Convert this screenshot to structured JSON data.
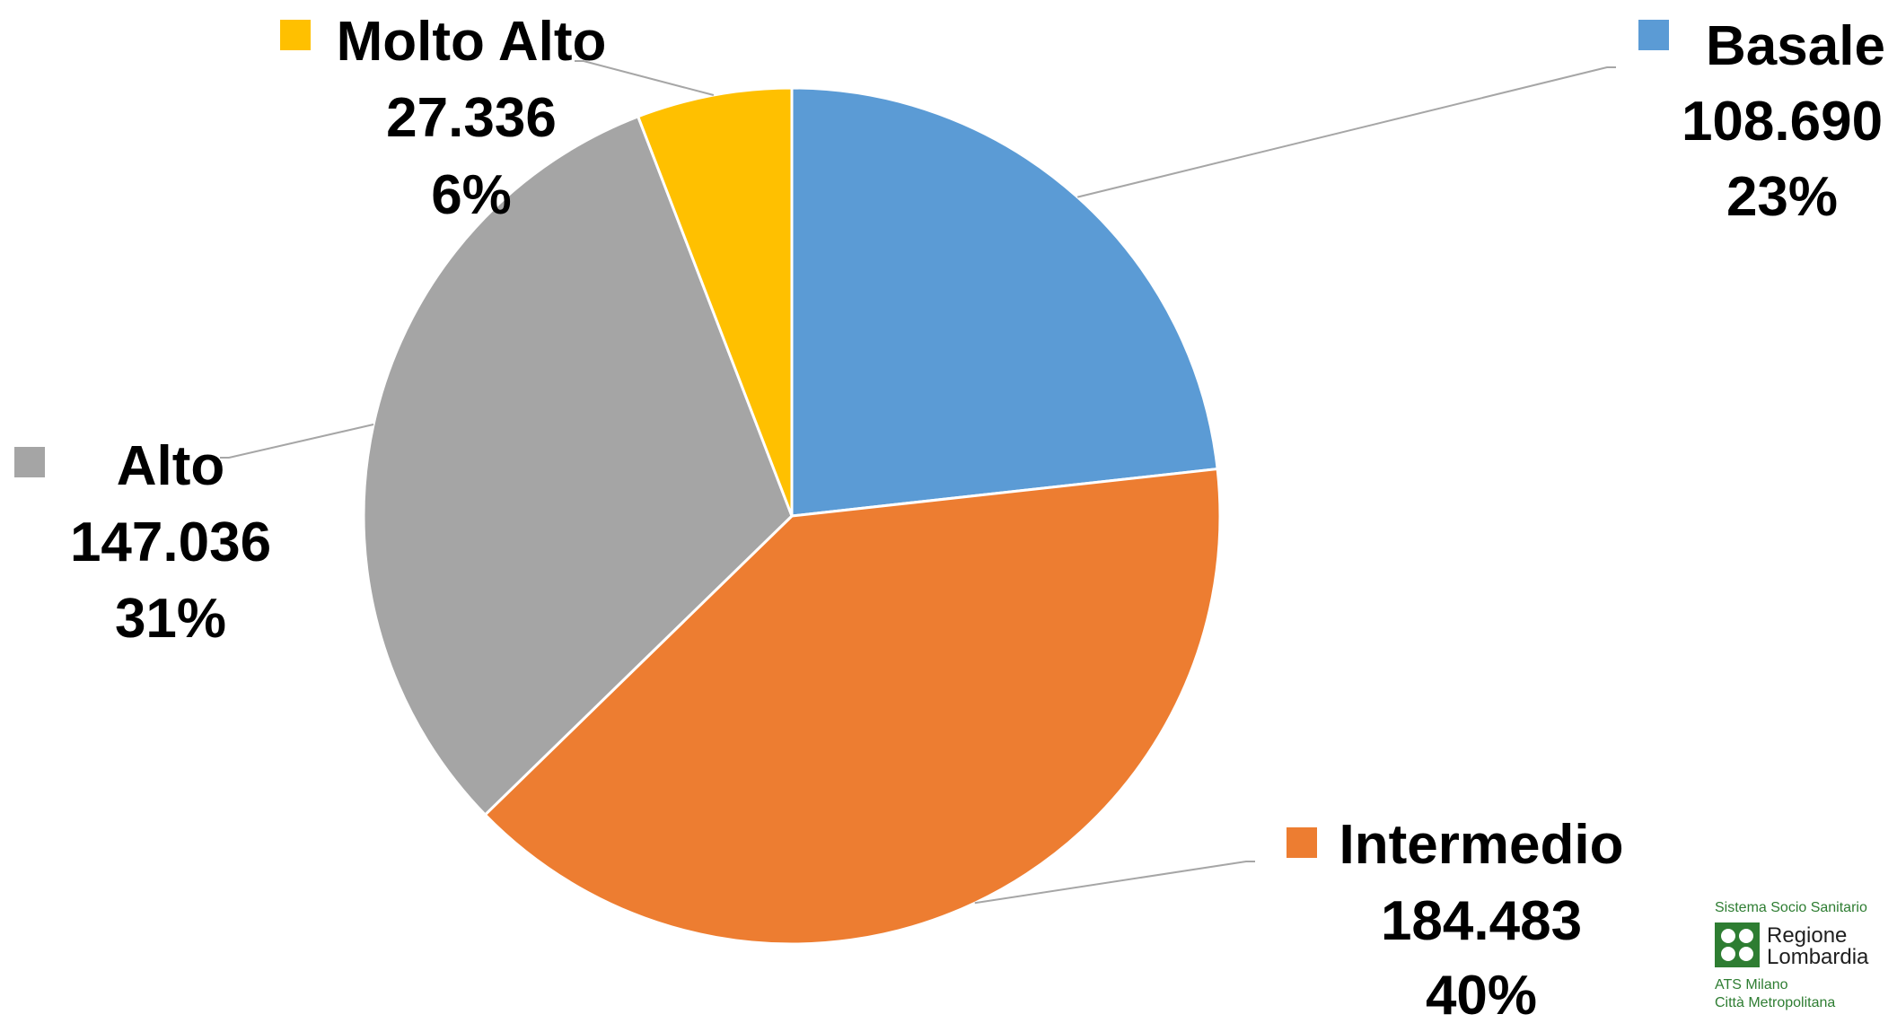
{
  "chart_data": {
    "type": "pie",
    "slices": [
      {
        "label": "Basale",
        "value": 108690,
        "value_text": "108.690",
        "percent_text": "23%",
        "color": "#5b9bd5"
      },
      {
        "label": "Intermedio",
        "value": 184483,
        "value_text": "184.483",
        "percent_text": "40%",
        "color": "#ed7d31"
      },
      {
        "label": "Alto",
        "value": 147036,
        "value_text": "147.036",
        "percent_text": "31%",
        "color": "#a5a5a5"
      },
      {
        "label": "Molto Alto",
        "value": 27336,
        "value_text": "27.336",
        "percent_text": "6%",
        "color": "#ffc000"
      }
    ],
    "start_angle_deg": 0,
    "direction": "clockwise",
    "data_labels": "outside-with-leader-lines",
    "legend": "none"
  },
  "logo": {
    "line1": "Sistema Socio Sanitario",
    "line2": "Regione",
    "line3": "Lombardia",
    "line4": "ATS Milano",
    "line5": "Città Metropolitana",
    "color": "#2e7d32"
  }
}
